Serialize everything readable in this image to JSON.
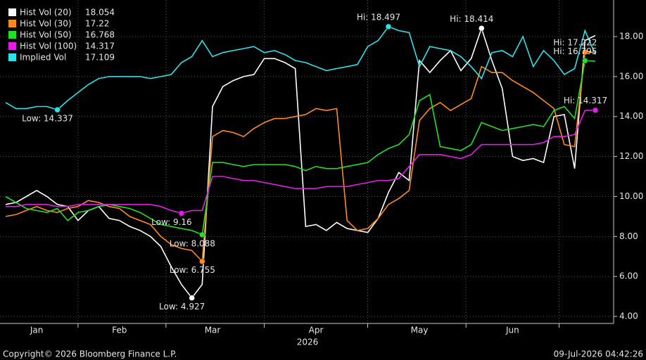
{
  "chart_data": {
    "type": "line",
    "xlabel": "2026",
    "source": "Copyright© 2026 Bloomberg Finance L.P.",
    "timestamp": "09-Jul-2026 04:42:26",
    "categories": [
      null,
      null,
      null,
      "Jan",
      null,
      null,
      null,
      null,
      null,
      null,
      null,
      "Feb",
      null,
      null,
      null,
      null,
      null,
      null,
      null,
      null,
      "Mar",
      null,
      null,
      null,
      null,
      null,
      null,
      null,
      null,
      null,
      "Apr",
      null,
      null,
      null,
      null,
      null,
      null,
      null,
      null,
      null,
      "May",
      null,
      null,
      null,
      null,
      null,
      null,
      null,
      null,
      "Jun",
      null,
      null,
      null,
      null,
      null,
      null,
      null,
      null
    ],
    "ylim": [
      3.65,
      19.83
    ],
    "yticks": [
      {
        "value": 4,
        "label": "4.00"
      },
      {
        "value": 6,
        "label": "6.00"
      },
      {
        "value": 8,
        "label": "8.00"
      },
      {
        "value": 10,
        "label": "10.00"
      },
      {
        "value": 12,
        "label": "12.00"
      },
      {
        "value": 14,
        "label": "14.00"
      },
      {
        "value": 16,
        "label": "16.00"
      },
      {
        "value": 18,
        "label": "18.00"
      }
    ],
    "grid": true,
    "legend": "top-left",
    "series": [
      {
        "name": "Hist Vol (20)",
        "color": "#ffffff",
        "values": [
          9.6,
          9.7,
          10.0,
          10.3,
          10.0,
          9.6,
          9.5,
          8.8,
          9.3,
          9.5,
          8.9,
          8.8,
          8.5,
          8.3,
          8.0,
          7.5,
          6.5,
          5.6,
          4.927,
          5.6,
          14.5,
          15.5,
          15.8,
          16.0,
          16.1,
          16.9,
          16.9,
          16.7,
          16.4,
          8.5,
          8.6,
          8.3,
          8.7,
          8.4,
          8.3,
          8.2,
          8.9,
          10.2,
          11.2,
          10.8,
          16.8,
          16.2,
          16.8,
          17.3,
          16.3,
          16.9,
          18.414,
          16.8,
          15.4,
          12.0,
          11.8,
          11.9,
          11.7,
          14.0,
          14.1,
          11.4,
          17.8,
          18.054
        ],
        "value_labels": [
          null,
          null,
          null,
          null,
          null,
          null,
          null,
          null,
          null,
          null,
          null,
          null,
          null,
          null,
          null,
          null,
          null,
          null,
          "Low: 4.927",
          null,
          null,
          null,
          null,
          null,
          null,
          null,
          null,
          null,
          null,
          null,
          null,
          null,
          null,
          null,
          null,
          null,
          null,
          null,
          null,
          null,
          null,
          null,
          null,
          null,
          null,
          null,
          "Hi: 18.414",
          null,
          null,
          null,
          null,
          null,
          null,
          null,
          null,
          null,
          null,
          null
        ]
      },
      {
        "name": "Hist Vol (30)",
        "color": "#ff8a1e",
        "values": [
          9.0,
          9.1,
          9.3,
          9.5,
          9.3,
          9.2,
          9.4,
          9.5,
          9.8,
          9.7,
          9.5,
          9.4,
          9.0,
          8.8,
          8.6,
          8.0,
          7.6,
          7.4,
          7.3,
          6.755,
          13.0,
          13.3,
          13.2,
          13.0,
          13.4,
          13.7,
          13.9,
          13.9,
          14.0,
          14.1,
          14.4,
          14.3,
          14.4,
          8.8,
          8.3,
          8.4,
          8.9,
          9.6,
          9.9,
          10.3,
          13.8,
          14.4,
          14.7,
          14.3,
          14.6,
          14.9,
          16.5,
          16.2,
          16.2,
          15.8,
          15.5,
          15.2,
          14.8,
          14.4,
          12.6,
          12.5,
          17.222,
          17.22
        ],
        "value_labels": [
          null,
          null,
          null,
          null,
          null,
          null,
          null,
          null,
          null,
          null,
          null,
          null,
          null,
          null,
          null,
          null,
          null,
          null,
          null,
          "Low: 6.755",
          null,
          null,
          null,
          null,
          null,
          null,
          null,
          null,
          null,
          null,
          null,
          null,
          null,
          null,
          null,
          null,
          null,
          null,
          null,
          null,
          null,
          null,
          null,
          null,
          null,
          null,
          null,
          null,
          null,
          null,
          null,
          null,
          null,
          null,
          null,
          null,
          "Hi: 17.222",
          null
        ]
      },
      {
        "name": "Hist Vol (50)",
        "color": "#22e022",
        "values": [
          10.0,
          9.7,
          9.4,
          9.3,
          9.2,
          9.4,
          8.8,
          9.2,
          9.3,
          9.5,
          9.6,
          9.5,
          9.4,
          9.2,
          8.9,
          8.6,
          8.5,
          8.4,
          8.3,
          8.088,
          11.7,
          11.7,
          11.6,
          11.5,
          11.6,
          11.6,
          11.6,
          11.6,
          11.5,
          11.3,
          11.5,
          11.4,
          11.4,
          11.5,
          11.6,
          11.7,
          12.1,
          12.4,
          12.6,
          13.1,
          14.8,
          15.1,
          12.5,
          12.4,
          12.3,
          12.6,
          13.7,
          13.5,
          13.3,
          13.4,
          13.5,
          13.6,
          13.5,
          14.3,
          14.5,
          13.9,
          16.795,
          16.768
        ],
        "value_labels": [
          null,
          null,
          null,
          null,
          null,
          null,
          null,
          null,
          null,
          null,
          null,
          null,
          null,
          null,
          null,
          null,
          null,
          null,
          null,
          "Low: 8.088",
          null,
          null,
          null,
          null,
          null,
          null,
          null,
          null,
          null,
          null,
          null,
          null,
          null,
          null,
          null,
          null,
          null,
          null,
          null,
          null,
          null,
          null,
          null,
          null,
          null,
          null,
          null,
          null,
          null,
          null,
          null,
          null,
          null,
          null,
          null,
          null,
          "Hi: 16.795",
          null
        ]
      },
      {
        "name": "Hist Vol (100)",
        "color": "#e21ee2",
        "values": [
          9.5,
          9.5,
          9.6,
          9.6,
          9.6,
          9.5,
          9.5,
          9.6,
          9.6,
          9.6,
          9.6,
          9.6,
          9.6,
          9.6,
          9.6,
          9.5,
          9.3,
          9.16,
          9.3,
          9.3,
          11.0,
          11.0,
          10.9,
          10.8,
          10.8,
          10.7,
          10.6,
          10.5,
          10.4,
          10.4,
          10.4,
          10.5,
          10.5,
          10.5,
          10.6,
          10.7,
          10.8,
          10.8,
          10.9,
          11.5,
          12.1,
          12.1,
          12.1,
          12.0,
          11.9,
          12.1,
          12.6,
          12.6,
          12.6,
          12.6,
          12.6,
          12.6,
          12.7,
          13.0,
          13.0,
          13.1,
          14.3,
          14.317
        ],
        "value_labels": [
          null,
          null,
          null,
          null,
          null,
          null,
          null,
          null,
          null,
          null,
          null,
          null,
          null,
          null,
          null,
          null,
          null,
          "Low: 9.16",
          null,
          null,
          null,
          null,
          null,
          null,
          null,
          null,
          null,
          null,
          null,
          null,
          null,
          null,
          null,
          null,
          null,
          null,
          null,
          null,
          null,
          null,
          null,
          null,
          null,
          null,
          null,
          null,
          null,
          null,
          null,
          null,
          null,
          null,
          null,
          null,
          null,
          null,
          null,
          "Hi: 14.317"
        ]
      },
      {
        "name": "Implied Vol",
        "color": "#2ee2ea",
        "values": [
          14.7,
          14.4,
          14.4,
          14.5,
          14.5,
          14.337,
          14.8,
          15.2,
          15.6,
          15.9,
          16.0,
          16.0,
          16.0,
          16.0,
          15.9,
          16.0,
          16.1,
          16.7,
          17.0,
          17.8,
          17.0,
          17.2,
          17.3,
          17.4,
          17.5,
          17.2,
          17.3,
          17.1,
          16.8,
          16.7,
          16.5,
          16.3,
          16.4,
          16.5,
          16.6,
          17.5,
          17.8,
          18.497,
          18.3,
          18.2,
          16.5,
          17.5,
          17.4,
          17.3,
          17.0,
          16.5,
          15.9,
          17.2,
          17.3,
          17.0,
          18.0,
          16.5,
          17.3,
          16.8,
          16.1,
          16.4,
          18.3,
          17.109
        ],
        "value_labels": [
          null,
          null,
          null,
          null,
          null,
          "Low: 14.337",
          null,
          null,
          null,
          null,
          null,
          null,
          null,
          null,
          null,
          null,
          null,
          null,
          null,
          null,
          null,
          null,
          null,
          null,
          null,
          null,
          null,
          null,
          null,
          null,
          null,
          null,
          null,
          null,
          null,
          null,
          null,
          "Hi: 18.497",
          null,
          null,
          null,
          null,
          null,
          null,
          null,
          null,
          null,
          null,
          null,
          null,
          null,
          null,
          null,
          null,
          null,
          null,
          null,
          null
        ]
      }
    ]
  }
}
